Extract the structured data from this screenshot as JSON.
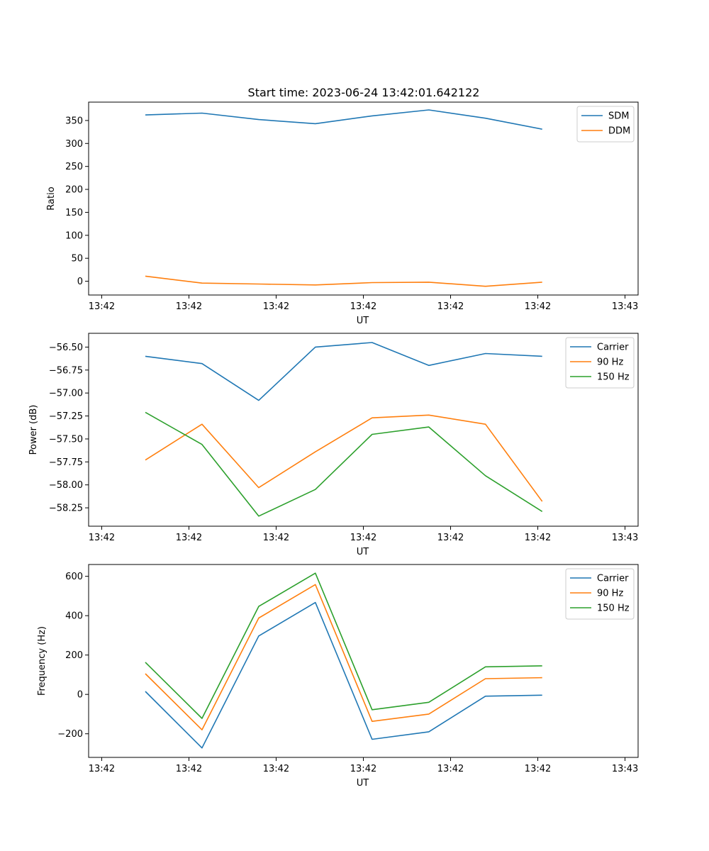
{
  "figure": {
    "title": "Start time: 2023-06-24 13:42:01.642122"
  },
  "chart_data": [
    {
      "type": "line",
      "title": "Start time: 2023-06-24 13:42:01.642122",
      "xlabel": "UT",
      "ylabel": "Ratio",
      "xticks": [
        "13:42",
        "13:42",
        "13:42",
        "13:42",
        "13:42",
        "13:42",
        "13:43"
      ],
      "xlim": [
        -0.15,
        6.15
      ],
      "ylim": [
        -30,
        390
      ],
      "yticks": [
        0,
        50,
        100,
        150,
        200,
        250,
        300,
        350
      ],
      "grid": false,
      "legend_position": "top-right",
      "x": [
        0.5,
        1.15,
        1.8,
        2.45,
        3.1,
        3.75,
        4.4,
        5.05
      ],
      "series": [
        {
          "name": "SDM",
          "color": "#1f77b4",
          "values": [
            362,
            366,
            352,
            343,
            360,
            373,
            355,
            331
          ]
        },
        {
          "name": "DDM",
          "color": "#ff7f0e",
          "values": [
            11,
            -4,
            -6,
            -8,
            -3,
            -2,
            -11,
            -2
          ]
        }
      ]
    },
    {
      "type": "line",
      "xlabel": "UT",
      "ylabel": "Power (dB)",
      "xticks": [
        "13:42",
        "13:42",
        "13:42",
        "13:42",
        "13:42",
        "13:42",
        "13:43"
      ],
      "xlim": [
        -0.15,
        6.15
      ],
      "ylim": [
        -58.45,
        -56.35
      ],
      "yticks": [
        -58.25,
        -58.0,
        -57.75,
        -57.5,
        -57.25,
        -57.0,
        -56.75,
        -56.5
      ],
      "ytick_labels": [
        "−58.25",
        "−58.00",
        "−57.75",
        "−57.50",
        "−57.25",
        "−57.00",
        "−56.75",
        "−56.50"
      ],
      "grid": false,
      "legend_position": "top-right",
      "x": [
        0.5,
        1.15,
        1.8,
        2.45,
        3.1,
        3.75,
        4.4,
        5.05
      ],
      "series": [
        {
          "name": "Carrier",
          "color": "#1f77b4",
          "values": [
            -56.6,
            -56.68,
            -57.08,
            -56.5,
            -56.45,
            -56.7,
            -56.57,
            -56.6
          ]
        },
        {
          "name": "90 Hz",
          "color": "#ff7f0e",
          "values": [
            -57.73,
            -57.34,
            -58.03,
            -57.64,
            -57.27,
            -57.24,
            -57.34,
            -58.18
          ]
        },
        {
          "name": "150 Hz",
          "color": "#2ca02c",
          "values": [
            -57.21,
            -57.56,
            -58.34,
            -58.05,
            -57.45,
            -57.37,
            -57.9,
            -58.29
          ]
        }
      ]
    },
    {
      "type": "line",
      "xlabel": "UT",
      "ylabel": "Frequency (Hz)",
      "xticks": [
        "13:42",
        "13:42",
        "13:42",
        "13:42",
        "13:42",
        "13:42",
        "13:43"
      ],
      "xlim": [
        -0.15,
        6.15
      ],
      "ylim": [
        -320,
        660
      ],
      "yticks": [
        -200,
        0,
        200,
        400,
        600
      ],
      "ytick_labels": [
        "−200",
        "0",
        "200",
        "400",
        "600"
      ],
      "grid": false,
      "legend_position": "top-right",
      "x": [
        0.5,
        1.15,
        1.8,
        2.45,
        3.1,
        3.75,
        4.4,
        5.05
      ],
      "series": [
        {
          "name": "Carrier",
          "color": "#1f77b4",
          "values": [
            15,
            -272,
            297,
            467,
            -228,
            -190,
            -9,
            -4
          ]
        },
        {
          "name": "90 Hz",
          "color": "#ff7f0e",
          "values": [
            105,
            -180,
            388,
            558,
            -137,
            -100,
            80,
            85
          ]
        },
        {
          "name": "150 Hz",
          "color": "#2ca02c",
          "values": [
            163,
            -122,
            447,
            616,
            -78,
            -40,
            140,
            145
          ]
        }
      ]
    }
  ]
}
